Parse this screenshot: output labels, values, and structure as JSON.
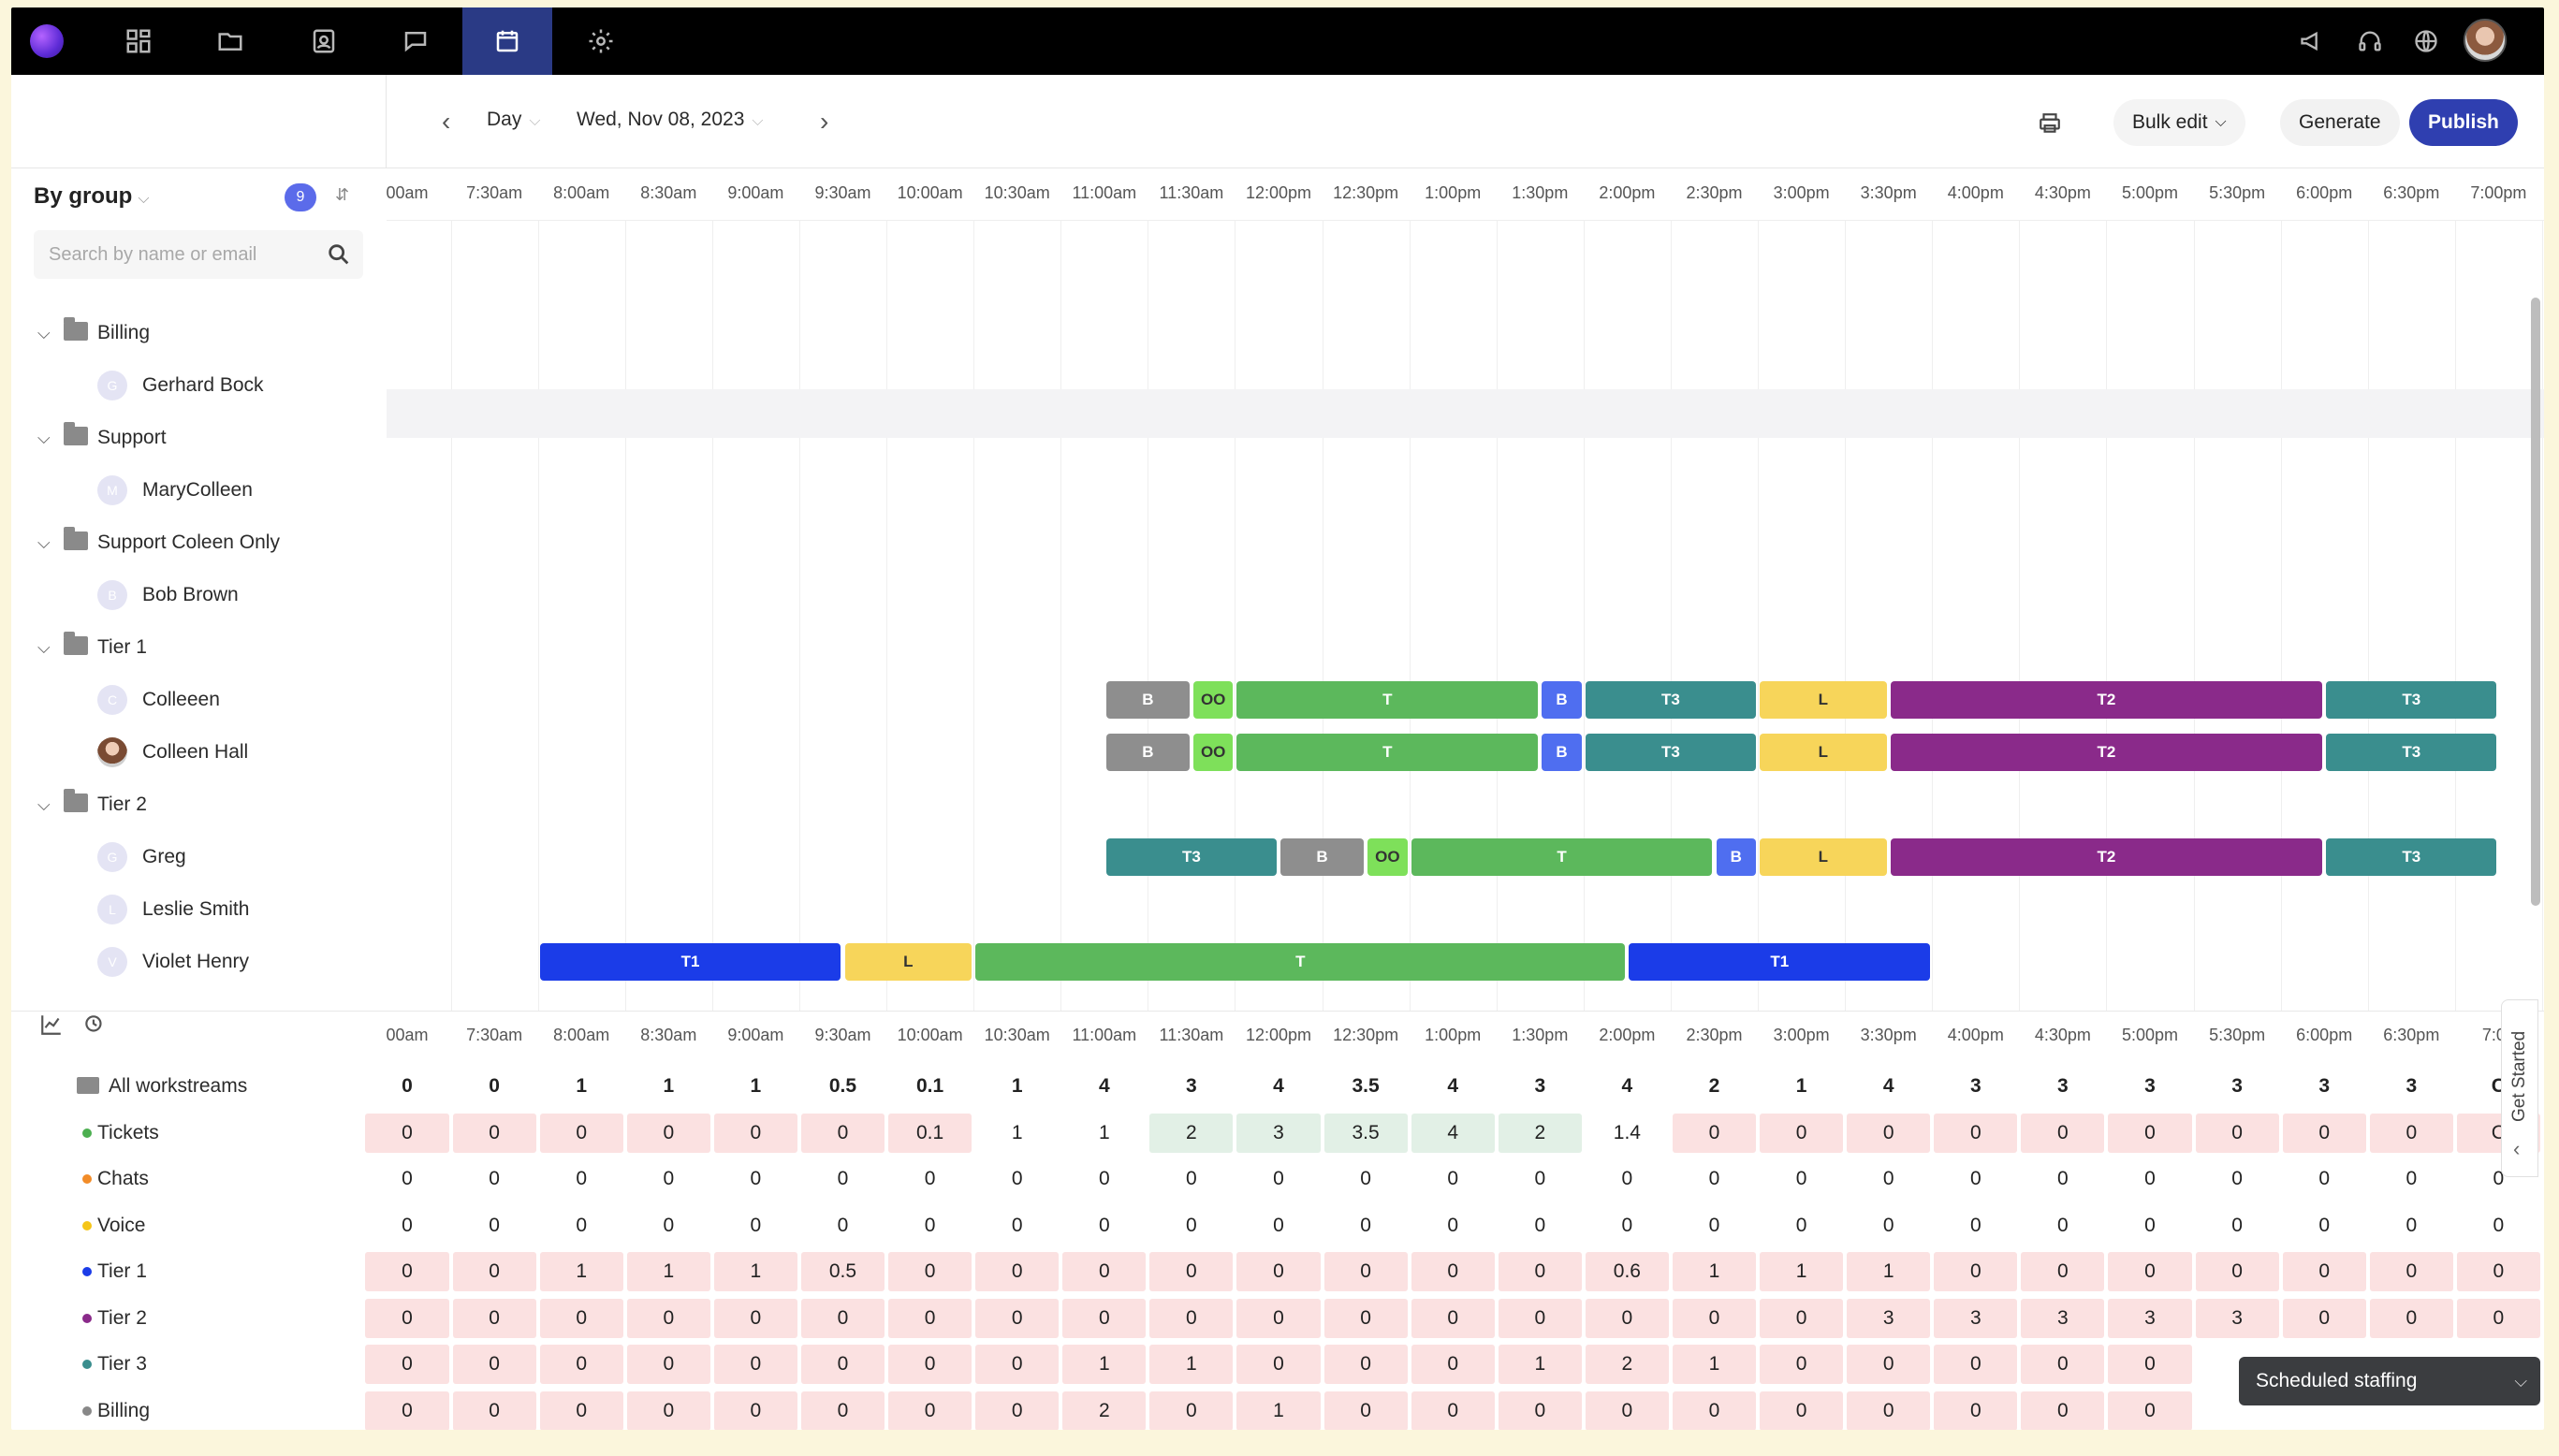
{
  "nav": {
    "icons": [
      "logo",
      "dashboard-icon",
      "folder-icon",
      "contacts-icon",
      "chat-icon",
      "calendar-icon",
      "settings-icon"
    ],
    "right_icons": [
      "megaphone-icon",
      "headset-icon",
      "globe-icon"
    ]
  },
  "toolbar": {
    "view_label": "Day",
    "date_label": "Wed, Nov 08, 2023",
    "bulk_edit_label": "Bulk edit",
    "generate_label": "Generate",
    "publish_label": "Publish"
  },
  "sidebar": {
    "group_by_label": "By group",
    "badge_count": "9",
    "search_placeholder": "Search by name or email",
    "tree": [
      {
        "type": "group",
        "label": "Billing"
      },
      {
        "type": "person",
        "label": "Gerhard Bock",
        "initial": "G"
      },
      {
        "type": "group",
        "label": "Support"
      },
      {
        "type": "person",
        "label": "MaryColleen",
        "initial": "M"
      },
      {
        "type": "group",
        "label": "Support Coleen Only"
      },
      {
        "type": "person",
        "label": "Bob Brown",
        "initial": "B"
      },
      {
        "type": "group",
        "label": "Tier 1"
      },
      {
        "type": "person",
        "label": "Colleeen",
        "initial": "C"
      },
      {
        "type": "person",
        "label": "Colleen Hall",
        "initial": "",
        "photo": true
      },
      {
        "type": "group",
        "label": "Tier 2"
      },
      {
        "type": "person",
        "label": "Greg",
        "initial": "G"
      },
      {
        "type": "person",
        "label": "Leslie Smith",
        "initial": "L"
      },
      {
        "type": "person",
        "label": "Violet Henry",
        "initial": "V"
      }
    ]
  },
  "timeline": {
    "times": [
      "00am",
      "7:30am",
      "8:00am",
      "8:30am",
      "9:00am",
      "9:30am",
      "10:00am",
      "10:30am",
      "11:00am",
      "11:30am",
      "12:00pm",
      "12:30pm",
      "1:00pm",
      "1:30pm",
      "2:00pm",
      "2:30pm",
      "3:00pm",
      "3:30pm",
      "4:00pm",
      "4:30pm",
      "5:00pm",
      "5:30pm",
      "6:00pm",
      "6:30pm",
      "7:00pm"
    ],
    "bottom_times": [
      "00am",
      "7:30am",
      "8:00am",
      "8:30am",
      "9:00am",
      "9:30am",
      "10:00am",
      "10:30am",
      "11:00am",
      "11:30am",
      "12:00pm",
      "12:30pm",
      "1:00pm",
      "1:30pm",
      "2:00pm",
      "2:30pm",
      "3:00pm",
      "3:30pm",
      "4:00pm",
      "4:30pm",
      "5:00pm",
      "5:30pm",
      "6:00pm",
      "6:30pm",
      "7:00"
    ],
    "shift_colors": {
      "B_gray": "#8e8e8e",
      "OO": "#7ee05a",
      "T": "#5cb85c",
      "B_blue": "#4f6ef0",
      "T3": "#3a8e8e",
      "L": "#f7d55a",
      "T2": "#8a2a8a",
      "T1": "#1b3ce8"
    },
    "rows": [
      {
        "person": "Colleeen",
        "shifts": [
          {
            "label": "B",
            "color": "B_gray",
            "start": "11:00am",
            "end": "11:30am"
          },
          {
            "label": "OO",
            "color": "OO",
            "start": "11:30am",
            "end": "11:45am"
          },
          {
            "label": "T",
            "color": "T",
            "start": "11:45am",
            "end": "1:30pm"
          },
          {
            "label": "B",
            "color": "B_blue",
            "start": "1:30pm",
            "end": "1:45pm"
          },
          {
            "label": "T3",
            "color": "T3",
            "start": "1:45pm",
            "end": "2:45pm"
          },
          {
            "label": "L",
            "color": "L",
            "start": "2:45pm",
            "end": "3:30pm"
          },
          {
            "label": "T2",
            "color": "T2",
            "start": "3:30pm",
            "end": "6:00pm"
          },
          {
            "label": "T3",
            "color": "T3",
            "start": "6:00pm",
            "end": "7:00pm"
          }
        ]
      },
      {
        "person": "Colleen Hall",
        "shifts": [
          {
            "label": "B",
            "color": "B_gray",
            "start": "11:00am",
            "end": "11:30am"
          },
          {
            "label": "OO",
            "color": "OO",
            "start": "11:30am",
            "end": "11:45am"
          },
          {
            "label": "T",
            "color": "T",
            "start": "11:45am",
            "end": "1:30pm"
          },
          {
            "label": "B",
            "color": "B_blue",
            "start": "1:30pm",
            "end": "1:45pm"
          },
          {
            "label": "T3",
            "color": "T3",
            "start": "1:45pm",
            "end": "2:45pm"
          },
          {
            "label": "L",
            "color": "L",
            "start": "2:45pm",
            "end": "3:30pm"
          },
          {
            "label": "T2",
            "color": "T2",
            "start": "3:30pm",
            "end": "6:00pm"
          },
          {
            "label": "T3",
            "color": "T3",
            "start": "6:00pm",
            "end": "7:00pm"
          }
        ]
      },
      {
        "person": "Greg",
        "shifts": [
          {
            "label": "T3",
            "color": "T3",
            "start": "11:00am",
            "end": "12:00pm"
          },
          {
            "label": "B",
            "color": "B_gray",
            "start": "12:00pm",
            "end": "12:30pm"
          },
          {
            "label": "OO",
            "color": "OO",
            "start": "12:30pm",
            "end": "12:45pm"
          },
          {
            "label": "T",
            "color": "T",
            "start": "12:45pm",
            "end": "2:30pm"
          },
          {
            "label": "B",
            "color": "B_blue",
            "start": "2:30pm",
            "end": "2:45pm"
          },
          {
            "label": "L",
            "color": "L",
            "start": "2:45pm",
            "end": "3:30pm"
          },
          {
            "label": "T2",
            "color": "T2",
            "start": "3:30pm",
            "end": "6:00pm"
          },
          {
            "label": "T3",
            "color": "T3",
            "start": "6:00pm",
            "end": "7:00pm"
          }
        ]
      },
      {
        "person": "Violet Henry",
        "shifts": [
          {
            "label": "T1",
            "color": "T1",
            "start": "7:45am",
            "end": "9:30am"
          },
          {
            "label": "L",
            "color": "L",
            "start": "9:30am",
            "end": "10:15am"
          },
          {
            "label": "T",
            "color": "T",
            "start": "10:15am",
            "end": "2:00pm"
          },
          {
            "label": "T1",
            "color": "T1",
            "start": "2:00pm",
            "end": "3:45pm"
          }
        ]
      }
    ]
  },
  "staffing": {
    "metrics": [
      {
        "label": "All workstreams",
        "dot": "",
        "bold": true,
        "values": [
          "0",
          "0",
          "1",
          "1",
          "1",
          "0.5",
          "0.1",
          "1",
          "4",
          "3",
          "4",
          "3.5",
          "4",
          "3",
          "4",
          "2",
          "1",
          "4",
          "3",
          "3",
          "3",
          "3",
          "3",
          "3",
          "C"
        ]
      },
      {
        "label": "Tickets",
        "dot": "#4caf50",
        "values": [
          "0",
          "0",
          "0",
          "0",
          "0",
          "0",
          "0.1",
          "1",
          "1",
          "2",
          "3",
          "3.5",
          "4",
          "2",
          "1.4",
          "0",
          "0",
          "0",
          "0",
          "0",
          "0",
          "0",
          "0",
          "0",
          "C"
        ]
      },
      {
        "label": "Chats",
        "dot": "#f28c28",
        "values": [
          "0",
          "0",
          "0",
          "0",
          "0",
          "0",
          "0",
          "0",
          "0",
          "0",
          "0",
          "0",
          "0",
          "0",
          "0",
          "0",
          "0",
          "0",
          "0",
          "0",
          "0",
          "0",
          "0",
          "0",
          "0"
        ]
      },
      {
        "label": "Voice",
        "dot": "#f5c518",
        "values": [
          "0",
          "0",
          "0",
          "0",
          "0",
          "0",
          "0",
          "0",
          "0",
          "0",
          "0",
          "0",
          "0",
          "0",
          "0",
          "0",
          "0",
          "0",
          "0",
          "0",
          "0",
          "0",
          "0",
          "0",
          "0"
        ]
      },
      {
        "label": "Tier 1",
        "dot": "#1b3ce8",
        "values": [
          "0",
          "0",
          "1",
          "1",
          "1",
          "0.5",
          "0",
          "0",
          "0",
          "0",
          "0",
          "0",
          "0",
          "0",
          "0.6",
          "1",
          "1",
          "1",
          "0",
          "0",
          "0",
          "0",
          "0",
          "0",
          "0"
        ]
      },
      {
        "label": "Tier 2",
        "dot": "#8a2a8a",
        "values": [
          "0",
          "0",
          "0",
          "0",
          "0",
          "0",
          "0",
          "0",
          "0",
          "0",
          "0",
          "0",
          "0",
          "0",
          "0",
          "0",
          "0",
          "3",
          "3",
          "3",
          "3",
          "3",
          "0",
          "0",
          "0"
        ]
      },
      {
        "label": "Tier 3",
        "dot": "#3a8e8e",
        "values": [
          "0",
          "0",
          "0",
          "0",
          "0",
          "0",
          "0",
          "0",
          "1",
          "1",
          "0",
          "0",
          "0",
          "1",
          "2",
          "1",
          "0",
          "0",
          "0",
          "0",
          "0",
          "",
          "",
          "",
          ""
        ]
      },
      {
        "label": "Billing",
        "dot": "#888888",
        "values": [
          "0",
          "0",
          "0",
          "0",
          "0",
          "0",
          "0",
          "0",
          "2",
          "0",
          "1",
          "0",
          "0",
          "0",
          "0",
          "0",
          "0",
          "0",
          "0",
          "0",
          "0",
          "",
          "",
          "",
          ""
        ]
      }
    ],
    "cell_tints": {
      "Tickets": [
        "pink",
        "pink",
        "pink",
        "pink",
        "pink",
        "pink",
        "pink",
        "",
        "",
        "green",
        "green",
        "green",
        "green",
        "green",
        "",
        "pink",
        "pink",
        "pink",
        "pink",
        "pink",
        "pink",
        "pink",
        "pink",
        "pink",
        "pink"
      ],
      "Chats": [],
      "Voice": [],
      "Tier 1": [
        "pink",
        "pink",
        "pink",
        "pink",
        "pink",
        "pink",
        "pink",
        "pink",
        "pink",
        "pink",
        "pink",
        "pink",
        "pink",
        "pink",
        "pink",
        "pink",
        "pink",
        "pink",
        "pink",
        "pink",
        "pink",
        "pink",
        "pink",
        "pink",
        "pink"
      ],
      "Tier 2": [
        "pink",
        "pink",
        "pink",
        "pink",
        "pink",
        "pink",
        "pink",
        "pink",
        "pink",
        "pink",
        "pink",
        "pink",
        "pink",
        "pink",
        "pink",
        "pink",
        "pink",
        "pink",
        "pink",
        "pink",
        "pink",
        "pink",
        "pink",
        "pink",
        "pink"
      ],
      "Tier 3": [
        "pink",
        "pink",
        "pink",
        "pink",
        "pink",
        "pink",
        "pink",
        "pink",
        "pink",
        "pink",
        "pink",
        "pink",
        "pink",
        "pink",
        "pink",
        "pink",
        "pink",
        "pink",
        "pink",
        "pink",
        "pink",
        "",
        "",
        "",
        ""
      ],
      "Billing": [
        "pink",
        "pink",
        "pink",
        "pink",
        "pink",
        "pink",
        "pink",
        "pink",
        "pink",
        "pink",
        "pink",
        "pink",
        "pink",
        "pink",
        "pink",
        "pink",
        "pink",
        "pink",
        "pink",
        "pink",
        "pink",
        "",
        "",
        "",
        ""
      ]
    },
    "get_started_label": "Get Started",
    "scheduled_staffing_label": "Scheduled staffing"
  }
}
